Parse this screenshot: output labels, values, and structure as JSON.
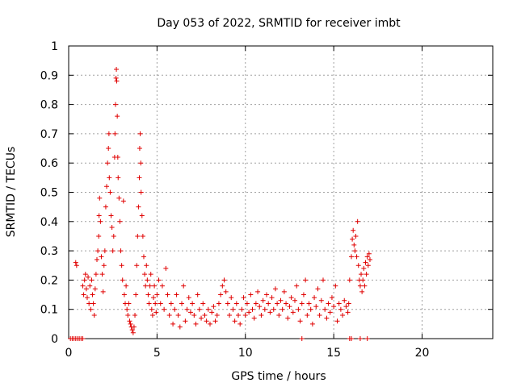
{
  "chart_data": {
    "type": "scatter",
    "title": "Day 053 of 2022, SRMTID for receiver imbt",
    "xlabel": "GPS time / hours",
    "ylabel": "SRMTID / TECUs",
    "xlim": [
      0,
      24
    ],
    "ylim": [
      0,
      1
    ],
    "x_ticks": [
      0,
      5,
      10,
      15,
      20
    ],
    "y_ticks": [
      0,
      0.1,
      0.2,
      0.3,
      0.4,
      0.5,
      0.6,
      0.7,
      0.8,
      0.9,
      1
    ],
    "x_tick_labels": [
      "0",
      "5",
      "10",
      "15",
      "20"
    ],
    "y_tick_labels": [
      "0",
      "0.1",
      "0.2",
      "0.3",
      "0.4",
      "0.5",
      "0.6",
      "0.7",
      "0.8",
      "0.9",
      "1"
    ],
    "grid": true,
    "series": [
      {
        "name": "SRMTID",
        "color": "#e00000",
        "marker": "plus",
        "points": [
          [
            0.1,
            0
          ],
          [
            0.2,
            0
          ],
          [
            0.3,
            0
          ],
          [
            0.4,
            0
          ],
          [
            0.5,
            0
          ],
          [
            0.6,
            0
          ],
          [
            0.7,
            0
          ],
          [
            0.8,
            0
          ],
          [
            0.4,
            0.26
          ],
          [
            0.45,
            0.25
          ],
          [
            0.8,
            0.18
          ],
          [
            0.85,
            0.15
          ],
          [
            0.9,
            0.2
          ],
          [
            0.95,
            0.22
          ],
          [
            1.0,
            0.17
          ],
          [
            1.05,
            0.14
          ],
          [
            1.1,
            0.21
          ],
          [
            1.15,
            0.12
          ],
          [
            1.2,
            0.18
          ],
          [
            1.25,
            0.1
          ],
          [
            1.3,
            0.2
          ],
          [
            1.35,
            0.15
          ],
          [
            1.4,
            0.12
          ],
          [
            1.45,
            0.08
          ],
          [
            1.5,
            0.17
          ],
          [
            1.55,
            0.22
          ],
          [
            1.6,
            0.27
          ],
          [
            1.65,
            0.3
          ],
          [
            1.7,
            0.35
          ],
          [
            1.72,
            0.42
          ],
          [
            1.75,
            0.48
          ],
          [
            1.8,
            0.4
          ],
          [
            1.85,
            0.28
          ],
          [
            1.9,
            0.22
          ],
          [
            1.95,
            0.16
          ],
          [
            2.0,
            0.25
          ],
          [
            2.05,
            0.3
          ],
          [
            2.1,
            0.45
          ],
          [
            2.15,
            0.52
          ],
          [
            2.2,
            0.6
          ],
          [
            2.25,
            0.65
          ],
          [
            2.28,
            0.7
          ],
          [
            2.3,
            0.55
          ],
          [
            2.35,
            0.5
          ],
          [
            2.4,
            0.42
          ],
          [
            2.45,
            0.38
          ],
          [
            2.5,
            0.3
          ],
          [
            2.55,
            0.35
          ],
          [
            2.6,
            0.62
          ],
          [
            2.62,
            0.7
          ],
          [
            2.65,
            0.8
          ],
          [
            2.68,
            0.89
          ],
          [
            2.7,
            0.92
          ],
          [
            2.72,
            0.88
          ],
          [
            2.75,
            0.76
          ],
          [
            2.78,
            0.62
          ],
          [
            2.8,
            0.55
          ],
          [
            2.85,
            0.48
          ],
          [
            2.9,
            0.4
          ],
          [
            2.95,
            0.3
          ],
          [
            3.0,
            0.25
          ],
          [
            3.05,
            0.2
          ],
          [
            3.1,
            0.47
          ],
          [
            3.15,
            0.15
          ],
          [
            3.2,
            0.12
          ],
          [
            3.25,
            0.18
          ],
          [
            3.3,
            0.1
          ],
          [
            3.35,
            0.08
          ],
          [
            3.4,
            0.12
          ],
          [
            3.45,
            0.06
          ],
          [
            3.5,
            0.05
          ],
          [
            3.55,
            0.04
          ],
          [
            3.6,
            0.03
          ],
          [
            3.65,
            0.02
          ],
          [
            3.7,
            0.04
          ],
          [
            3.75,
            0.08
          ],
          [
            3.8,
            0.15
          ],
          [
            3.85,
            0.25
          ],
          [
            3.9,
            0.35
          ],
          [
            3.95,
            0.45
          ],
          [
            4.0,
            0.55
          ],
          [
            4.02,
            0.65
          ],
          [
            4.05,
            0.7
          ],
          [
            4.08,
            0.6
          ],
          [
            4.1,
            0.5
          ],
          [
            4.15,
            0.42
          ],
          [
            4.2,
            0.35
          ],
          [
            4.25,
            0.28
          ],
          [
            4.3,
            0.22
          ],
          [
            4.35,
            0.18
          ],
          [
            4.4,
            0.25
          ],
          [
            4.45,
            0.2
          ],
          [
            4.5,
            0.15
          ],
          [
            4.55,
            0.12
          ],
          [
            4.6,
            0.18
          ],
          [
            4.65,
            0.22
          ],
          [
            4.7,
            0.1
          ],
          [
            4.75,
            0.08
          ],
          [
            4.8,
            0.14
          ],
          [
            4.85,
            0.18
          ],
          [
            4.9,
            0.12
          ],
          [
            4.95,
            0.09
          ],
          [
            5.0,
            0.15
          ],
          [
            5.1,
            0.2
          ],
          [
            5.2,
            0.12
          ],
          [
            5.3,
            0.18
          ],
          [
            5.4,
            0.1
          ],
          [
            5.5,
            0.24
          ],
          [
            5.6,
            0.15
          ],
          [
            5.7,
            0.08
          ],
          [
            5.8,
            0.12
          ],
          [
            5.9,
            0.05
          ],
          [
            6.0,
            0.1
          ],
          [
            6.1,
            0.15
          ],
          [
            6.2,
            0.08
          ],
          [
            6.3,
            0.04
          ],
          [
            6.4,
            0.12
          ],
          [
            6.5,
            0.18
          ],
          [
            6.6,
            0.06
          ],
          [
            6.7,
            0.1
          ],
          [
            6.8,
            0.14
          ],
          [
            6.9,
            0.09
          ],
          [
            7.0,
            0.12
          ],
          [
            7.1,
            0.08
          ],
          [
            7.2,
            0.05
          ],
          [
            7.3,
            0.15
          ],
          [
            7.4,
            0.1
          ],
          [
            7.5,
            0.07
          ],
          [
            7.6,
            0.12
          ],
          [
            7.7,
            0.08
          ],
          [
            7.8,
            0.06
          ],
          [
            7.9,
            0.1
          ],
          [
            8.0,
            0.05
          ],
          [
            8.1,
            0.09
          ],
          [
            8.2,
            0.11
          ],
          [
            8.3,
            0.06
          ],
          [
            8.4,
            0.08
          ],
          [
            8.5,
            0.12
          ],
          [
            8.6,
            0.15
          ],
          [
            8.7,
            0.18
          ],
          [
            8.8,
            0.2
          ],
          [
            8.9,
            0.16
          ],
          [
            9.0,
            0.12
          ],
          [
            9.1,
            0.08
          ],
          [
            9.2,
            0.14
          ],
          [
            9.3,
            0.1
          ],
          [
            9.4,
            0.06
          ],
          [
            9.5,
            0.12
          ],
          [
            9.6,
            0.08
          ],
          [
            9.7,
            0.05
          ],
          [
            9.8,
            0.1
          ],
          [
            9.9,
            0.14
          ],
          [
            10.0,
            0.08
          ],
          [
            10.1,
            0.12
          ],
          [
            10.2,
            0.09
          ],
          [
            10.3,
            0.15
          ],
          [
            10.4,
            0.1
          ],
          [
            10.5,
            0.07
          ],
          [
            10.6,
            0.12
          ],
          [
            10.7,
            0.16
          ],
          [
            10.8,
            0.11
          ],
          [
            10.9,
            0.08
          ],
          [
            11.0,
            0.13
          ],
          [
            11.1,
            0.1
          ],
          [
            11.2,
            0.15
          ],
          [
            11.3,
            0.12
          ],
          [
            11.4,
            0.09
          ],
          [
            11.5,
            0.14
          ],
          [
            11.6,
            0.1
          ],
          [
            11.7,
            0.17
          ],
          [
            11.8,
            0.12
          ],
          [
            11.9,
            0.08
          ],
          [
            12.0,
            0.13
          ],
          [
            12.1,
            0.1
          ],
          [
            12.2,
            0.16
          ],
          [
            12.3,
            0.12
          ],
          [
            12.4,
            0.07
          ],
          [
            12.5,
            0.11
          ],
          [
            12.6,
            0.14
          ],
          [
            12.7,
            0.09
          ],
          [
            12.8,
            0.13
          ],
          [
            12.9,
            0.18
          ],
          [
            13.0,
            0.1
          ],
          [
            13.1,
            0.06
          ],
          [
            13.2,
            0.12
          ],
          [
            13.3,
            0.15
          ],
          [
            13.4,
            0.2
          ],
          [
            13.5,
            0.08
          ],
          [
            13.6,
            0.12
          ],
          [
            13.7,
            0.1
          ],
          [
            13.8,
            0.05
          ],
          [
            13.9,
            0.14
          ],
          [
            14.0,
            0.11
          ],
          [
            14.1,
            0.17
          ],
          [
            14.2,
            0.08
          ],
          [
            14.3,
            0.13
          ],
          [
            14.4,
            0.2
          ],
          [
            14.5,
            0.1
          ],
          [
            14.6,
            0.07
          ],
          [
            14.7,
            0.12
          ],
          [
            14.8,
            0.09
          ],
          [
            14.9,
            0.14
          ],
          [
            15.0,
            0.11
          ],
          [
            15.1,
            0.18
          ],
          [
            15.2,
            0.06
          ],
          [
            15.3,
            0.12
          ],
          [
            15.4,
            0.1
          ],
          [
            15.5,
            0.08
          ],
          [
            15.6,
            0.13
          ],
          [
            15.7,
            0.11
          ],
          [
            15.8,
            0.09
          ],
          [
            15.85,
            0.12
          ],
          [
            13.2,
            0
          ],
          [
            15.9,
            0
          ],
          [
            16.0,
            0
          ],
          [
            16.5,
            0
          ],
          [
            16.9,
            0
          ],
          [
            15.9,
            0.2
          ],
          [
            16.0,
            0.28
          ],
          [
            16.05,
            0.34
          ],
          [
            16.1,
            0.37
          ],
          [
            16.15,
            0.32
          ],
          [
            16.2,
            0.3
          ],
          [
            16.25,
            0.35
          ],
          [
            16.3,
            0.28
          ],
          [
            16.35,
            0.4
          ],
          [
            16.4,
            0.25
          ],
          [
            16.45,
            0.2
          ],
          [
            16.5,
            0.18
          ],
          [
            16.55,
            0.22
          ],
          [
            16.6,
            0.16
          ],
          [
            16.65,
            0.2
          ],
          [
            16.7,
            0.24
          ],
          [
            16.75,
            0.18
          ],
          [
            16.8,
            0.26
          ],
          [
            16.85,
            0.22
          ],
          [
            16.9,
            0.28
          ],
          [
            16.95,
            0.25
          ],
          [
            17.0,
            0.29
          ],
          [
            17.05,
            0.27
          ]
        ]
      }
    ]
  }
}
